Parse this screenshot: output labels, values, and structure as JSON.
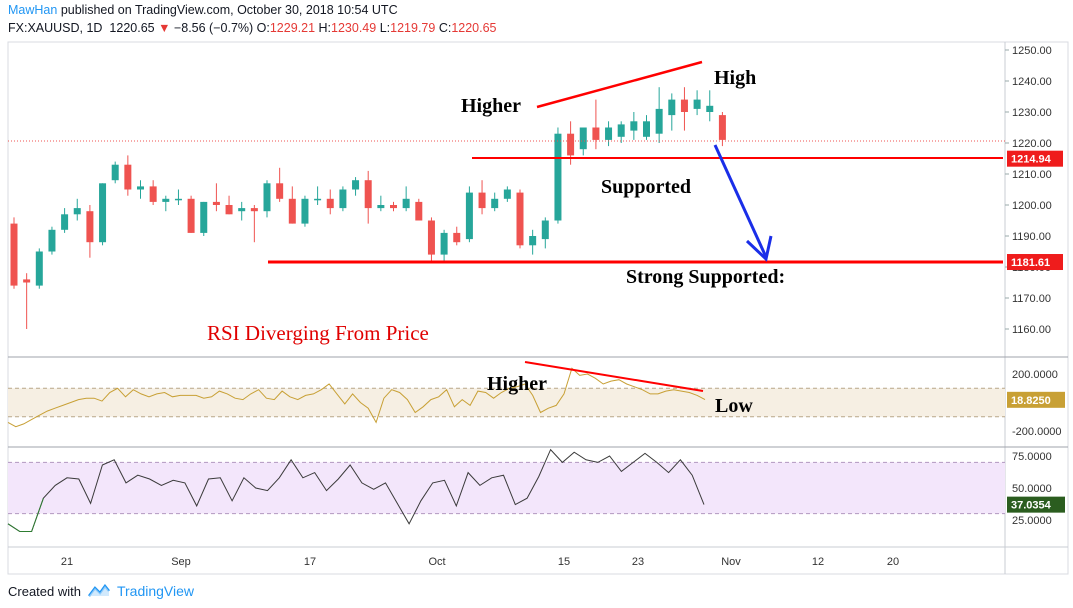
{
  "header": {
    "user": "MawHan",
    "published": "published on TradingView.com, October 30, 2018 10:54 UTC",
    "symbol": "FX:XAUUSD, 1D",
    "last": "1220.65",
    "change": "−8.56 (−0.7%)",
    "open_label": "O:",
    "open": "1229.21",
    "high_label": "H:",
    "high": "1230.49",
    "low_label": "L:",
    "low": "1219.79",
    "close_label": "C:",
    "close": "1220.65"
  },
  "footer": {
    "created_with": "Created with",
    "brand": "TradingView"
  },
  "colors": {
    "up": "#26a69a",
    "down": "#ef5350",
    "red_line": "#ff0000",
    "blue_arrow": "#1a2ee8",
    "cci_line": "#c8a035",
    "rsi_line": "#3a3a3a",
    "cci_band": "#f6efe3",
    "rsi_band": "#f3e6fb"
  },
  "chart_data": [
    {
      "type": "candlestick",
      "title": "FX:XAUUSD, 1D",
      "ylim": [
        1150,
        1255
      ],
      "y_ticks": [
        "1250.00",
        "1240.00",
        "1230.00",
        "1220.00",
        "1210.00",
        "1200.00",
        "1190.00",
        "1180.00",
        "1170.00",
        "1160.00"
      ],
      "x_tick_labels": [
        "21",
        "Sep",
        "17",
        "Oct",
        "15",
        "23",
        "Nov",
        "12",
        "20"
      ],
      "price_labels": [
        "1214.94",
        "1181.61"
      ],
      "candles": [
        [
          1194,
          1196,
          1173,
          1174
        ],
        [
          1176,
          1178,
          1160,
          1175
        ],
        [
          1174,
          1186,
          1173,
          1185
        ],
        [
          1185,
          1193,
          1184,
          1192
        ],
        [
          1192,
          1199,
          1191,
          1197
        ],
        [
          1197,
          1202,
          1195,
          1199
        ],
        [
          1198,
          1200,
          1183,
          1188
        ],
        [
          1188,
          1207,
          1187,
          1207
        ],
        [
          1208,
          1214,
          1207,
          1213
        ],
        [
          1213,
          1216,
          1203,
          1205
        ],
        [
          1205,
          1208,
          1202,
          1206
        ],
        [
          1206,
          1208,
          1200,
          1201
        ],
        [
          1201,
          1203,
          1198,
          1202
        ],
        [
          1202,
          1205,
          1200,
          1202
        ],
        [
          1202,
          1203,
          1191,
          1191
        ],
        [
          1191,
          1201,
          1190,
          1201
        ],
        [
          1201,
          1207,
          1198,
          1200
        ],
        [
          1200,
          1203,
          1197,
          1197
        ],
        [
          1198,
          1201,
          1195,
          1199
        ],
        [
          1199,
          1200,
          1188,
          1198
        ],
        [
          1198,
          1208,
          1196,
          1207
        ],
        [
          1207,
          1212,
          1201,
          1202
        ],
        [
          1202,
          1206,
          1194,
          1194
        ],
        [
          1194,
          1203,
          1193,
          1202
        ],
        [
          1202,
          1206,
          1200,
          1202
        ],
        [
          1202,
          1205,
          1197,
          1199
        ],
        [
          1199,
          1206,
          1198,
          1205
        ],
        [
          1205,
          1209,
          1203,
          1208
        ],
        [
          1208,
          1211,
          1194,
          1199
        ],
        [
          1199,
          1203,
          1198,
          1200
        ],
        [
          1200,
          1201,
          1198,
          1199
        ],
        [
          1199,
          1206,
          1198,
          1202
        ],
        [
          1201,
          1202,
          1195,
          1195
        ],
        [
          1195,
          1196,
          1182,
          1184
        ],
        [
          1184,
          1192,
          1182,
          1191
        ],
        [
          1191,
          1193,
          1187,
          1188
        ],
        [
          1189,
          1206,
          1188,
          1204
        ],
        [
          1204,
          1208,
          1197,
          1199
        ],
        [
          1199,
          1204,
          1198,
          1202
        ],
        [
          1202,
          1206,
          1201,
          1205
        ],
        [
          1204,
          1205,
          1186,
          1187
        ],
        [
          1187,
          1192,
          1184,
          1190
        ],
        [
          1189,
          1196,
          1186,
          1195
        ],
        [
          1195,
          1225,
          1194,
          1223
        ],
        [
          1223,
          1227,
          1213,
          1216
        ],
        [
          1218,
          1225,
          1216,
          1225
        ],
        [
          1225,
          1234,
          1218,
          1221
        ],
        [
          1221,
          1227,
          1219,
          1225
        ],
        [
          1222,
          1227,
          1220,
          1226
        ],
        [
          1224,
          1230,
          1221,
          1227
        ],
        [
          1222,
          1229,
          1221,
          1227
        ],
        [
          1223,
          1238,
          1220,
          1231
        ],
        [
          1229,
          1236,
          1224,
          1234
        ],
        [
          1234,
          1238,
          1224,
          1230
        ],
        [
          1231,
          1237,
          1229,
          1234
        ],
        [
          1230,
          1237,
          1227,
          1232
        ],
        [
          1229,
          1230,
          1219,
          1221
        ]
      ]
    },
    {
      "type": "line",
      "ylim": [
        -280,
        280
      ],
      "y_ticks": [
        "200.0000",
        "-200.0000"
      ],
      "current_label": "18.8250",
      "band": [
        100,
        -100
      ],
      "values": [
        -140,
        -170,
        -150,
        -120,
        -90,
        -60,
        -40,
        -20,
        0,
        20,
        30,
        30,
        10,
        70,
        100,
        40,
        90,
        60,
        40,
        60,
        70,
        40,
        50,
        50,
        50,
        30,
        40,
        80,
        60,
        30,
        20,
        60,
        90,
        30,
        20,
        80,
        40,
        20,
        50,
        60,
        90,
        130,
        60,
        -10,
        60,
        0,
        -40,
        -140,
        30,
        90,
        70,
        20,
        -70,
        -30,
        20,
        40,
        90,
        -30,
        20,
        -20,
        80,
        70,
        30,
        70,
        100,
        110,
        130,
        50,
        -70,
        -40,
        -20,
        60,
        240,
        190,
        200,
        170,
        130,
        150,
        160,
        130,
        110,
        90,
        60,
        60,
        80,
        90,
        80,
        70,
        50,
        20
      ],
      "ann_values": []
    },
    {
      "type": "line",
      "name": "RSI",
      "ylim": [
        12,
        88
      ],
      "y_ticks": [
        "75.0000",
        "50.0000",
        "25.0000"
      ],
      "current_label": "37.0354",
      "band": [
        70,
        30
      ],
      "values": [
        22,
        16,
        16,
        42,
        52,
        58,
        57,
        38,
        68,
        72,
        54,
        60,
        57,
        52,
        56,
        54,
        36,
        57,
        58,
        40,
        58,
        50,
        48,
        58,
        72,
        58,
        62,
        48,
        57,
        68,
        54,
        49,
        54,
        38,
        22,
        40,
        54,
        56,
        36,
        62,
        52,
        58,
        60,
        37,
        42,
        59,
        80,
        70,
        78,
        72,
        70,
        75,
        63,
        70,
        77,
        70,
        62,
        72,
        60,
        37
      ]
    }
  ],
  "annotations": {
    "higher_price": "Higher",
    "high_price": "High",
    "supported": "Supported",
    "strong_supported": "Strong Supported:",
    "rsi_diverging": "RSI Diverging From Price",
    "higher_osc": "Higher",
    "low_osc": "Low"
  }
}
